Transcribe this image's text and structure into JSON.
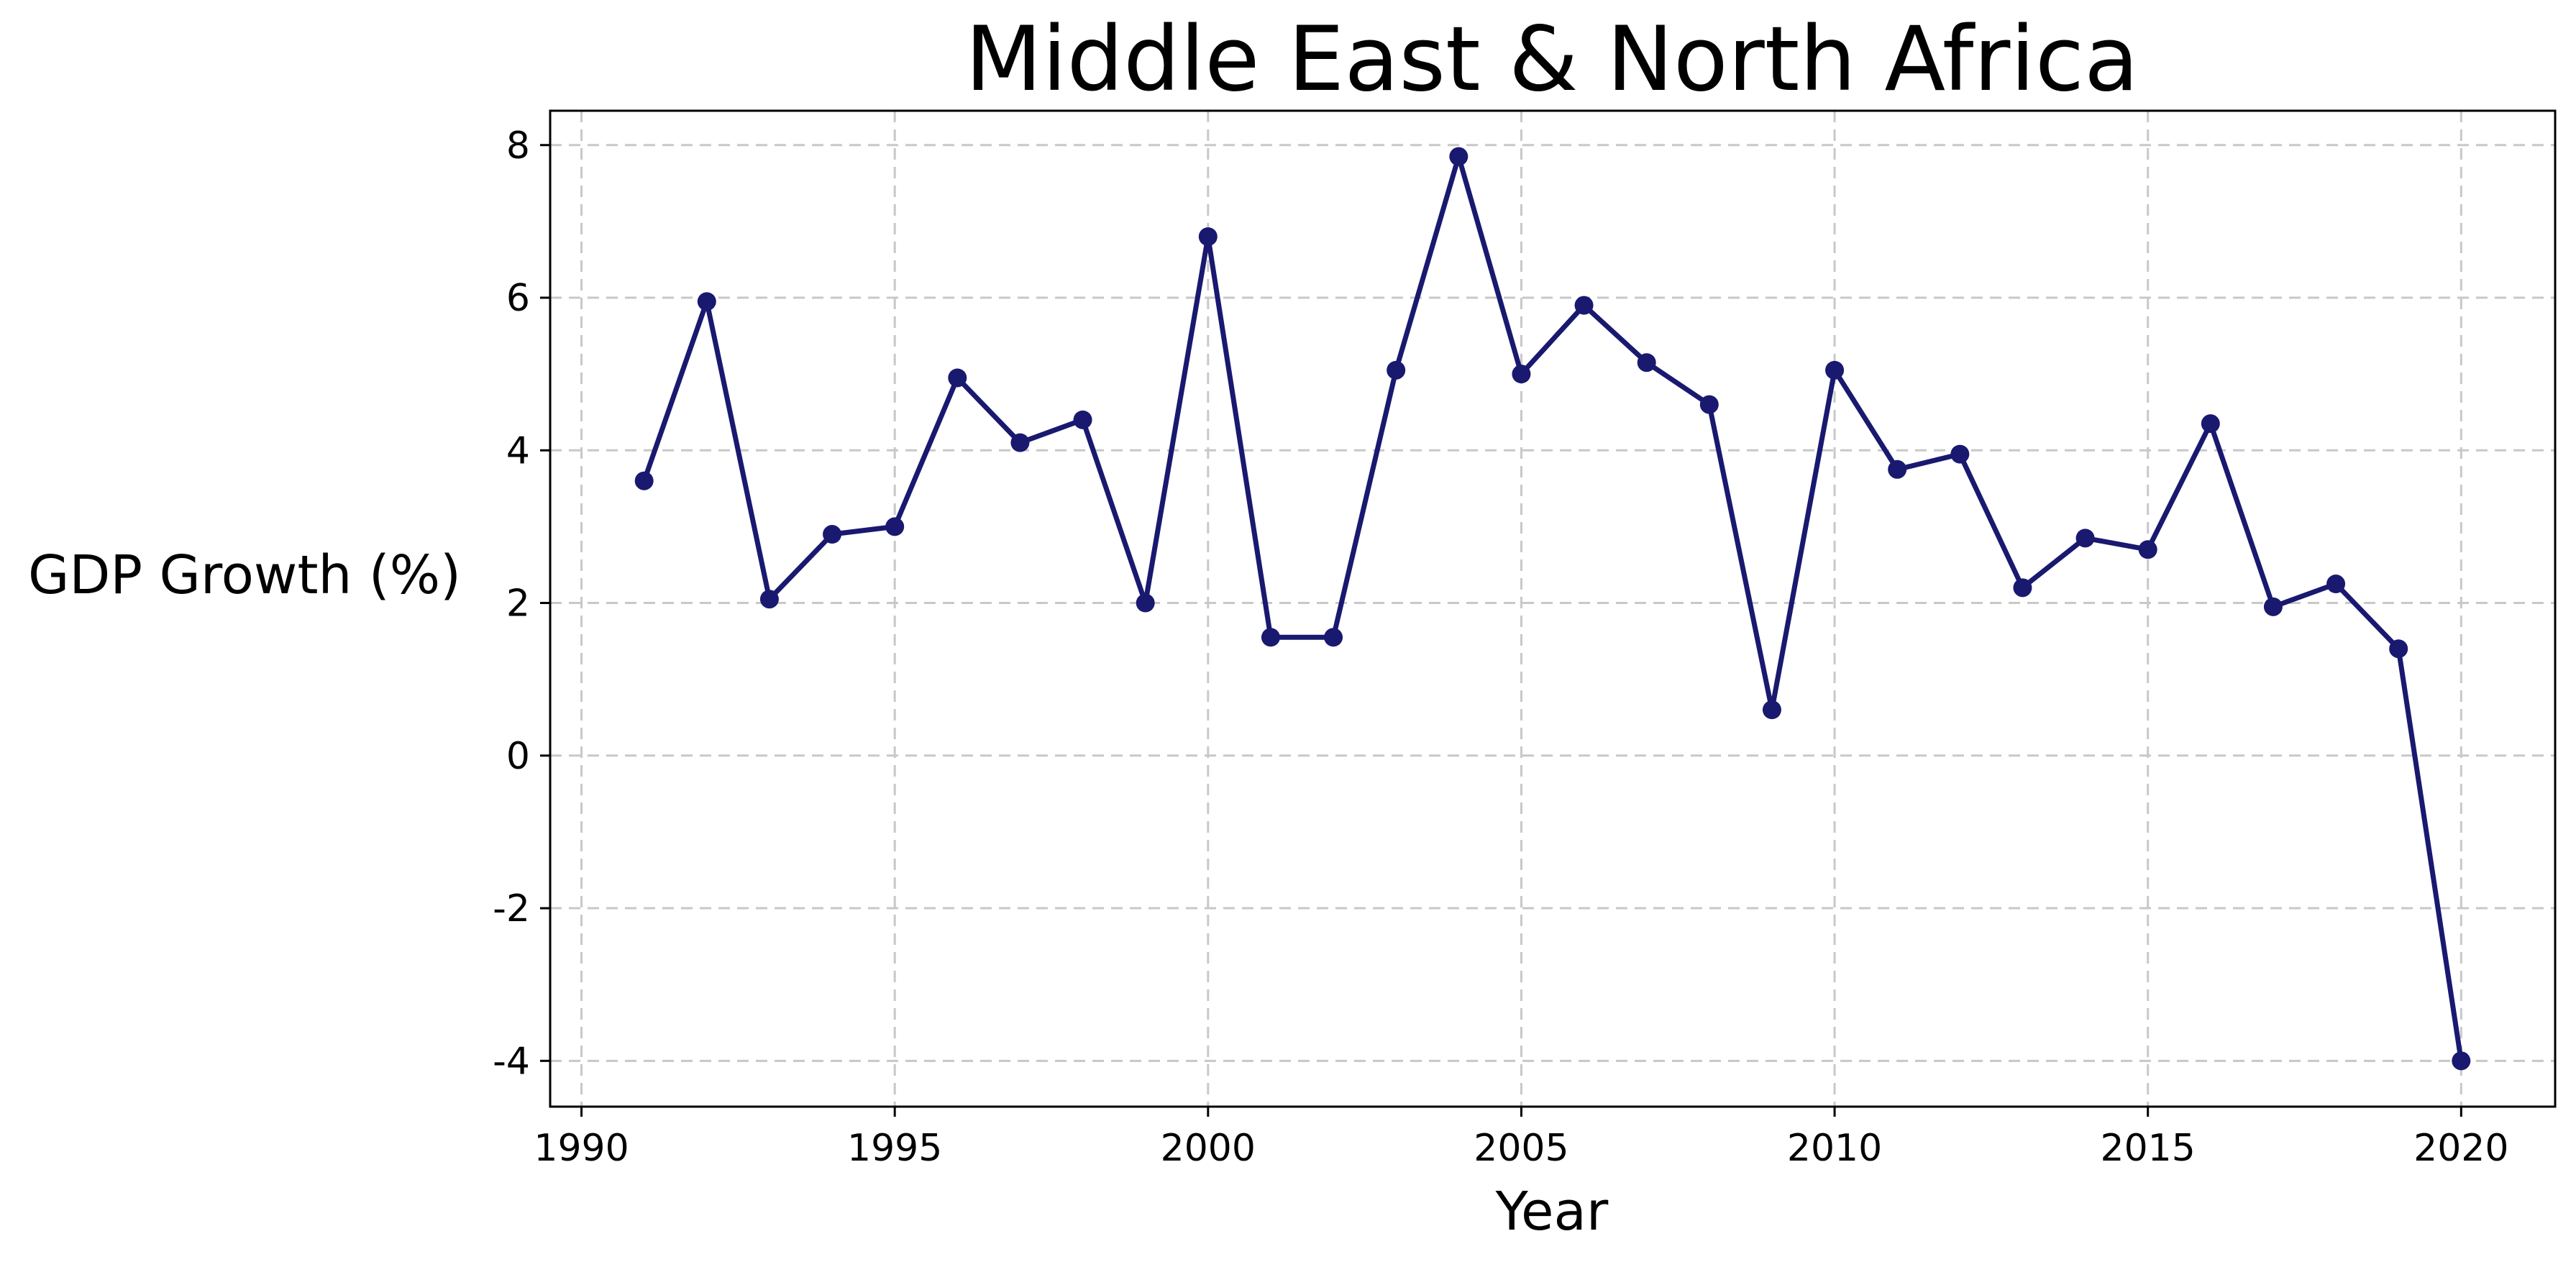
{
  "chart_data": {
    "type": "line",
    "title": "Middle East & North Africa",
    "xlabel": "Year",
    "ylabel": "GDP Growth (%)",
    "xlim": [
      1989.5,
      2021.5
    ],
    "ylim": [
      -4.6,
      8.45
    ],
    "xticks": [
      1990,
      1995,
      2000,
      2005,
      2010,
      2015,
      2020
    ],
    "xtick_labels": [
      "1990",
      "1995",
      "2000",
      "2005",
      "2010",
      "2015",
      "2020"
    ],
    "yticks": [
      -4,
      -2,
      0,
      2,
      4,
      6,
      8
    ],
    "ytick_labels": [
      "-4",
      "-2",
      "0",
      "2",
      "4",
      "6",
      "8"
    ],
    "grid": true,
    "series_color": "#191970",
    "x": [
      1991,
      1992,
      1993,
      1994,
      1995,
      1996,
      1997,
      1998,
      1999,
      2000,
      2001,
      2002,
      2003,
      2004,
      2005,
      2006,
      2007,
      2008,
      2009,
      2010,
      2011,
      2012,
      2013,
      2014,
      2015,
      2016,
      2017,
      2018,
      2019,
      2020
    ],
    "y": [
      3.6,
      5.95,
      2.05,
      2.9,
      3.0,
      4.95,
      4.1,
      4.4,
      2.0,
      6.8,
      1.55,
      1.55,
      5.05,
      7.85,
      5.0,
      5.9,
      5.15,
      4.6,
      0.6,
      5.05,
      3.75,
      3.95,
      2.2,
      2.85,
      2.7,
      4.35,
      1.95,
      2.25,
      1.4,
      -4.0
    ]
  }
}
